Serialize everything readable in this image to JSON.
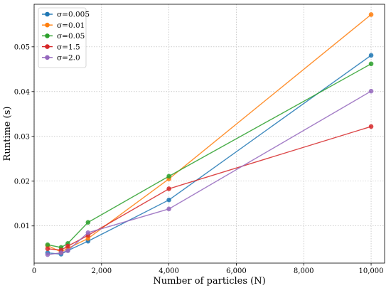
{
  "chart_data": {
    "type": "line",
    "title": "",
    "xlabel": "Number of particles (N)",
    "ylabel": "Runtime (s)",
    "xlim": [
      0,
      10400
    ],
    "ylim": [
      0.0017,
      0.0595
    ],
    "xticks": [
      0,
      2000,
      4000,
      6000,
      8000,
      10000
    ],
    "xtick_labels": [
      "0",
      "2,000",
      "4,000",
      "6,000",
      "8,000",
      "10,000"
    ],
    "yticks": [
      0.01,
      0.02,
      0.03,
      0.04,
      0.05
    ],
    "ytick_labels": [
      "0.01",
      "0.02",
      "0.03",
      "0.04",
      "0.05"
    ],
    "grid": true,
    "legend_position": "top-left",
    "x": [
      400,
      800,
      1000,
      1600,
      4000,
      10000
    ],
    "series": [
      {
        "name": "σ=0.005",
        "color": "#1f77b4",
        "values": [
          0.004,
          0.0037,
          0.0045,
          0.0066,
          0.0158,
          0.0481
        ]
      },
      {
        "name": "σ=0.01",
        "color": "#ff7f0e",
        "values": [
          0.0056,
          0.0042,
          0.005,
          0.0072,
          0.0205,
          0.0572
        ]
      },
      {
        "name": "σ=0.05",
        "color": "#2ca02c",
        "values": [
          0.0058,
          0.0052,
          0.0061,
          0.0108,
          0.0211,
          0.0462
        ]
      },
      {
        "name": "σ=1.5",
        "color": "#d62728",
        "values": [
          0.0049,
          0.0046,
          0.0055,
          0.0079,
          0.0183,
          0.0322
        ]
      },
      {
        "name": "σ=2.0",
        "color": "#9467bd",
        "values": [
          0.0036,
          0.004,
          0.0045,
          0.0085,
          0.0138,
          0.0401
        ]
      }
    ]
  }
}
